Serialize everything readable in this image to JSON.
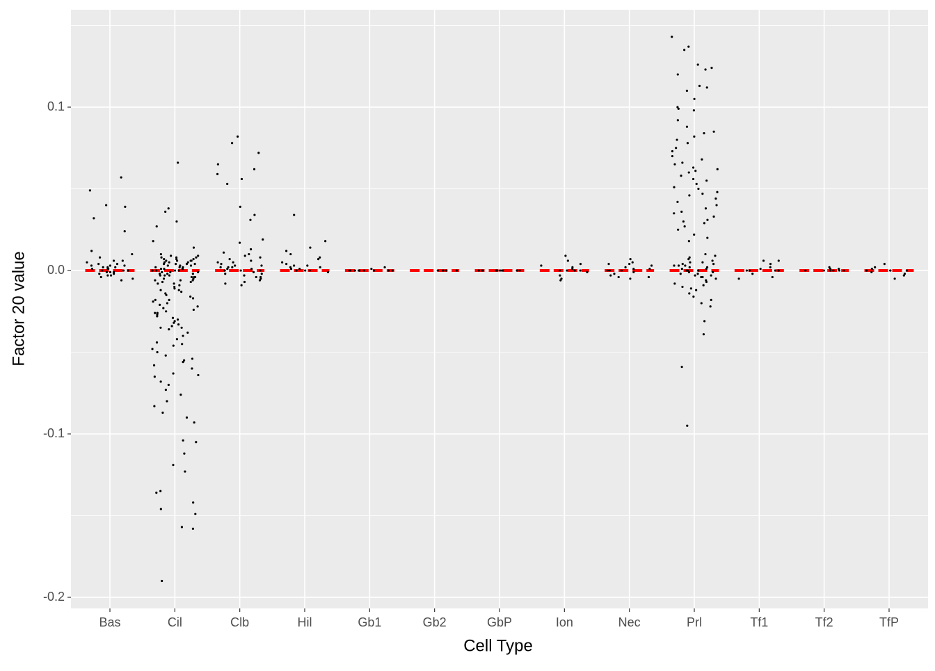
{
  "chart_data": {
    "type": "strip",
    "x_label": "Cell Type",
    "y_label": "Factor 20 value",
    "categories": [
      "Bas",
      "Cil",
      "Clb",
      "Hil",
      "Gb1",
      "Gb2",
      "GbP",
      "Ion",
      "Nec",
      "Prl",
      "Tf1",
      "Tf2",
      "TfP"
    ],
    "values": [
      [
        0.057,
        0.049,
        0.04,
        0.039,
        0.032,
        0.024,
        0.012,
        0.01,
        0.008,
        0.006,
        0.005,
        0.004,
        0.004,
        0.003,
        0.003,
        0.002,
        0.002,
        0.001,
        0.001,
        0.001,
        0.0,
        0.0,
        0.0,
        -0.001,
        -0.001,
        -0.002,
        -0.002,
        -0.003,
        -0.003,
        -0.004,
        -0.005,
        -0.006,
        0.006,
        0.002,
        -0.001,
        0.003
      ],
      [
        0.066,
        0.038,
        0.036,
        0.03,
        0.027,
        0.018,
        0.014,
        0.01,
        0.009,
        0.009,
        0.008,
        0.008,
        0.008,
        0.007,
        0.007,
        0.007,
        0.006,
        0.006,
        0.006,
        0.005,
        0.005,
        0.005,
        0.004,
        0.004,
        0.004,
        0.003,
        0.003,
        0.003,
        0.002,
        0.002,
        0.002,
        0.001,
        0.001,
        0.001,
        0.0,
        0.0,
        0.0,
        0.0,
        -0.001,
        -0.001,
        -0.001,
        -0.002,
        -0.002,
        -0.002,
        -0.003,
        -0.003,
        -0.003,
        -0.004,
        -0.004,
        -0.005,
        -0.005,
        -0.006,
        -0.006,
        -0.007,
        -0.007,
        -0.008,
        -0.008,
        -0.009,
        -0.01,
        -0.011,
        -0.012,
        -0.013,
        -0.014,
        -0.015,
        -0.016,
        -0.017,
        -0.018,
        -0.019,
        -0.02,
        -0.021,
        -0.022,
        -0.023,
        -0.024,
        -0.025,
        -0.026,
        -0.027,
        -0.028,
        -0.029,
        -0.03,
        -0.031,
        -0.032,
        -0.033,
        -0.034,
        -0.035,
        -0.036,
        -0.038,
        -0.04,
        -0.042,
        -0.044,
        -0.046,
        -0.048,
        -0.05,
        -0.052,
        -0.054,
        -0.056,
        -0.058,
        -0.06,
        -0.063,
        -0.065,
        -0.068,
        -0.07,
        -0.073,
        -0.076,
        -0.08,
        -0.083,
        -0.087,
        -0.09,
        -0.093,
        -0.104,
        -0.105,
        -0.112,
        -0.119,
        -0.123,
        -0.135,
        -0.136,
        -0.142,
        -0.146,
        -0.149,
        -0.157,
        -0.158,
        -0.19,
        0.004,
        -0.004,
        0.006,
        -0.006,
        0.001,
        -0.012,
        -0.018,
        -0.026,
        -0.035,
        -0.045,
        -0.055,
        -0.064
      ],
      [
        0.082,
        0.078,
        0.072,
        0.065,
        0.062,
        0.059,
        0.056,
        0.053,
        0.039,
        0.034,
        0.031,
        0.019,
        0.017,
        0.013,
        0.011,
        0.009,
        0.008,
        0.007,
        0.006,
        0.005,
        0.004,
        0.003,
        0.003,
        0.002,
        0.002,
        0.001,
        0.001,
        0.0,
        0.0,
        0.0,
        -0.001,
        -0.002,
        -0.002,
        -0.003,
        -0.004,
        -0.005,
        -0.006,
        -0.007,
        -0.008,
        -0.009,
        0.01,
        0.005,
        -0.004,
        0.002
      ],
      [
        0.034,
        0.018,
        0.014,
        0.012,
        0.01,
        0.008,
        0.007,
        0.005,
        0.004,
        0.003,
        0.002,
        0.001,
        0.001,
        0.0,
        0.0,
        0.0,
        -0.001,
        0.003,
        0.002
      ],
      [
        0.002,
        0.001,
        0.0,
        0.0,
        0.0,
        0.0,
        0.0,
        0.0,
        0.0,
        0.0,
        0.0,
        0.0
      ],
      [
        0.0,
        0.0,
        0.0,
        0.0,
        0.0
      ],
      [
        0.0,
        0.0,
        0.0,
        0.0,
        0.0,
        0.0,
        0.0,
        0.0,
        0.0,
        0.0
      ],
      [
        0.009,
        0.006,
        0.004,
        0.003,
        0.002,
        0.001,
        0.0,
        0.0,
        0.0,
        0.0,
        -0.001,
        -0.003,
        -0.005,
        -0.006
      ],
      [
        0.007,
        0.005,
        0.004,
        0.004,
        0.003,
        0.002,
        0.001,
        0.0,
        0.0,
        0.0,
        -0.001,
        -0.002,
        -0.003,
        -0.004,
        -0.005,
        -0.004,
        0.001
      ],
      [
        0.143,
        0.137,
        0.135,
        0.126,
        0.124,
        0.123,
        0.12,
        0.113,
        0.112,
        0.11,
        0.105,
        0.1,
        0.099,
        0.098,
        0.092,
        0.088,
        0.085,
        0.084,
        0.082,
        0.08,
        0.078,
        0.075,
        0.073,
        0.07,
        0.068,
        0.066,
        0.065,
        0.063,
        0.062,
        0.06,
        0.058,
        0.056,
        0.055,
        0.053,
        0.051,
        0.05,
        0.048,
        0.046,
        0.044,
        0.042,
        0.04,
        0.038,
        0.036,
        0.035,
        0.033,
        0.031,
        0.029,
        0.027,
        0.025,
        0.022,
        0.02,
        0.018,
        0.01,
        0.009,
        0.008,
        0.007,
        0.006,
        0.005,
        0.005,
        0.004,
        0.004,
        0.003,
        0.003,
        0.002,
        0.002,
        0.001,
        0.001,
        0.0,
        0.0,
        0.0,
        -0.001,
        -0.001,
        -0.002,
        -0.002,
        -0.003,
        -0.003,
        -0.004,
        -0.005,
        -0.006,
        -0.007,
        -0.008,
        -0.009,
        -0.01,
        -0.012,
        -0.014,
        -0.016,
        -0.018,
        -0.02,
        -0.022,
        -0.031,
        -0.039,
        -0.059,
        -0.095,
        0.061,
        0.047,
        0.03,
        0.003,
        -0.004,
        -0.011
      ],
      [
        0.006,
        0.006,
        0.004,
        0.002,
        0.001,
        0.0,
        0.0,
        0.0,
        0.0,
        0.0,
        -0.002,
        -0.004,
        -0.005
      ],
      [
        0.002,
        0.001,
        0.001,
        0.0,
        0.0,
        0.0,
        0.0,
        0.0,
        0.0
      ],
      [
        0.004,
        0.002,
        0.001,
        0.0,
        0.0,
        0.0,
        0.0,
        -0.001,
        -0.002,
        -0.003,
        -0.005
      ]
    ],
    "point_color": "#000000",
    "reference_values": [
      0,
      0,
      0,
      0,
      0,
      0,
      0,
      0,
      0,
      0,
      0,
      0,
      0
    ],
    "reference_color": "#ff0000",
    "ylim": [
      -0.2068,
      0.1596
    ],
    "yticks": [
      -0.2,
      -0.1,
      {
        "value": 0,
        "label": "0.0"
      },
      0.1
    ],
    "grid": true
  }
}
